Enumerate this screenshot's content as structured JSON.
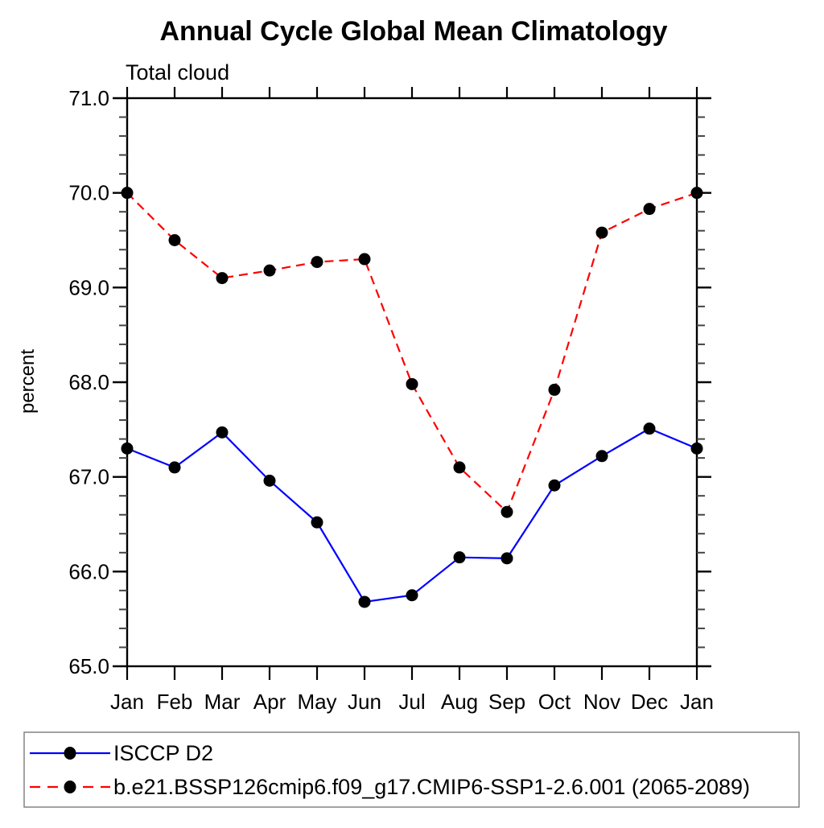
{
  "chart_data": {
    "type": "line",
    "title": "Annual Cycle Global Mean Climatology",
    "subtitle": "Total cloud",
    "xlabel": "",
    "ylabel": "percent",
    "categories": [
      "Jan",
      "Feb",
      "Mar",
      "Apr",
      "May",
      "Jun",
      "Jul",
      "Aug",
      "Sep",
      "Oct",
      "Nov",
      "Dec",
      "Jan"
    ],
    "ylim": [
      65.0,
      71.0
    ],
    "ytick_interval": 1.0,
    "yminor_interval": 0.2,
    "ytick_labels": [
      "65.0",
      "66.0",
      "67.0",
      "68.0",
      "69.0",
      "70.0",
      "71.0"
    ],
    "grid": false,
    "legend_position": "bottom",
    "marker": "filled-circle",
    "marker_color": "#000000",
    "series": [
      {
        "name": "ISCCP D2",
        "color": "#0000ff",
        "line_style": "solid",
        "values": [
          67.3,
          67.1,
          67.47,
          66.96,
          66.52,
          65.68,
          65.75,
          66.15,
          66.14,
          66.91,
          67.22,
          67.51,
          67.3
        ]
      },
      {
        "name": "b.e21.BSSP126cmip6.f09_g17.CMIP6-SSP1-2.6.001 (2065-2089)",
        "color": "#ff0000",
        "line_style": "dashed",
        "values": [
          70.0,
          69.5,
          69.1,
          69.18,
          69.27,
          69.3,
          67.98,
          67.1,
          66.63,
          67.92,
          69.58,
          69.83,
          70.0
        ]
      }
    ],
    "axis_color": "#000000",
    "minor_tick_color": "#444444"
  }
}
